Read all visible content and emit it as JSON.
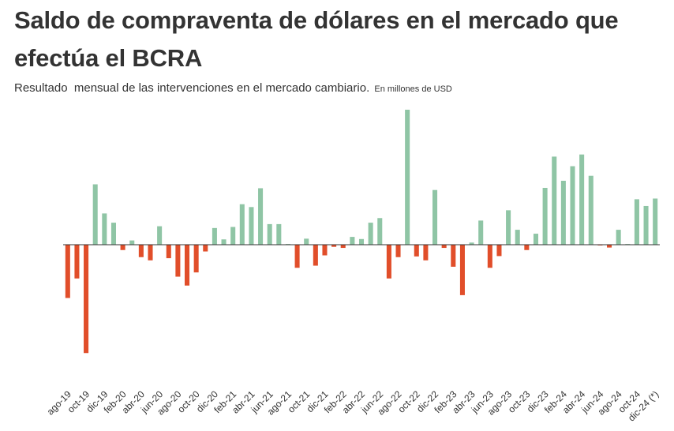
{
  "title": "Saldo de compraventa de dólares en el mercado que efectúa el BCRA",
  "subtitle": {
    "text": "Resultado  mensual de las intervenciones en el mercado cambiario.",
    "unit": "En millones de USD"
  },
  "colors": {
    "positive": "#8fc5a5",
    "negative": "#e14e2a",
    "axis": "#333333"
  },
  "chart_data": {
    "type": "bar",
    "title": "Saldo de compraventa de dólares en el mercado que efectúa el BCRA",
    "subtitle": "Resultado  mensual de las intervenciones en el mercado cambiario.",
    "unit": "En millones de USD",
    "xlabel": "",
    "ylabel": "",
    "grid": false,
    "ylim": [
      -3200,
      3800
    ],
    "categories": [
      "ago-19",
      "sep-19",
      "oct-19",
      "nov-19",
      "dic-19",
      "ene-20",
      "feb-20",
      "mar-20",
      "abr-20",
      "may-20",
      "jun-20",
      "jul-20",
      "ago-20",
      "sep-20",
      "oct-20",
      "nov-20",
      "dic-20",
      "ene-21",
      "feb-21",
      "mar-21",
      "abr-21",
      "may-21",
      "jun-21",
      "jul-21",
      "ago-21",
      "sep-21",
      "oct-21",
      "nov-21",
      "dic-21",
      "ene-22",
      "feb-22",
      "mar-22",
      "abr-22",
      "may-22",
      "jun-22",
      "jul-22",
      "ago-22",
      "sep-22",
      "oct-22",
      "nov-22",
      "dic-22",
      "ene-23",
      "feb-23",
      "mar-23",
      "abr-23",
      "may-23",
      "jun-23",
      "jul-23",
      "ago-23",
      "sep-23",
      "oct-23",
      "nov-23",
      "dic-23",
      "ene-24",
      "feb-24",
      "mar-24",
      "abr-24",
      "may-24",
      "jun-24",
      "jul-24",
      "ago-24",
      "sep-24",
      "oct-24",
      "nov-24",
      "dic-24 (*)"
    ],
    "tick_labels": [
      "ago-19",
      "oct-19",
      "dic-19",
      "feb-20",
      "abr-20",
      "jun-20",
      "ago-20",
      "oct-20",
      "dic-20",
      "feb-21",
      "abr-21",
      "jun-21",
      "ago-21",
      "oct-21",
      "dic-21",
      "feb-22",
      "abr-22",
      "jun-22",
      "ago-22",
      "oct-22",
      "dic-22",
      "feb-23",
      "abr-23",
      "jun-23",
      "ago-23",
      "oct-23",
      "dic-23",
      "feb-24",
      "abr-24",
      "jun-24",
      "ago-24",
      "oct-24",
      "dic-24 (*)"
    ],
    "values": [
      -1500,
      -950,
      -3050,
      1700,
      880,
      620,
      -150,
      120,
      -350,
      -440,
      520,
      -380,
      -900,
      -1150,
      -780,
      -190,
      470,
      150,
      500,
      1140,
      1060,
      1590,
      580,
      580,
      20,
      -650,
      170,
      -590,
      -300,
      -60,
      -90,
      220,
      160,
      620,
      750,
      -950,
      -350,
      3800,
      -330,
      -440,
      1540,
      -90,
      -620,
      -1420,
      60,
      680,
      -650,
      -320,
      970,
      420,
      -150,
      310,
      1600,
      2480,
      1800,
      2210,
      2540,
      1940,
      -20,
      -80,
      420,
      20,
      1280,
      1090,
      1300
    ]
  }
}
